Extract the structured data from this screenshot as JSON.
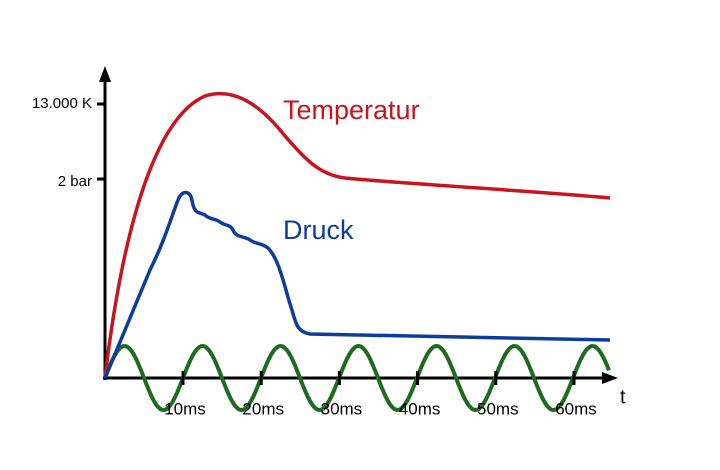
{
  "curves": {
    "temperature": "Temperatur",
    "pressure": "Druck"
  },
  "y_axis": {
    "ticks": [
      "13.000 K",
      "2 bar"
    ]
  },
  "x_axis": {
    "label": "t",
    "ticks": [
      "10ms",
      "20ms",
      "30ms",
      "40ms",
      "50ms",
      "60ms"
    ]
  }
}
